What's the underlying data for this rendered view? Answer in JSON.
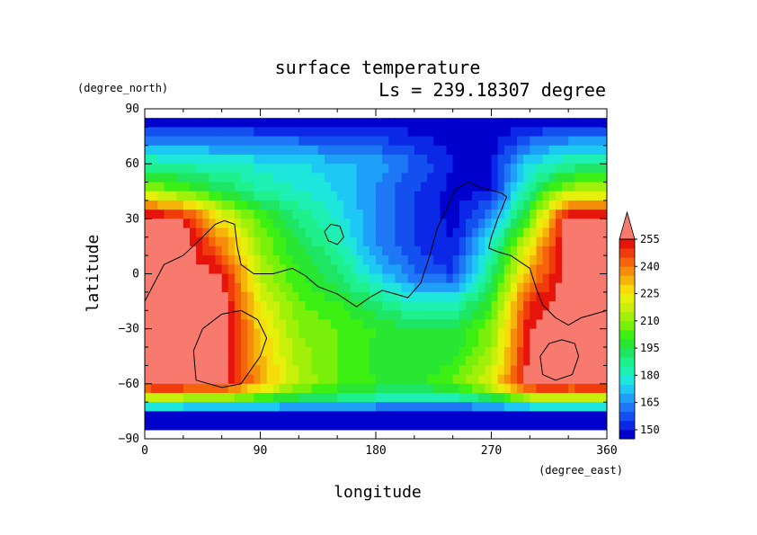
{
  "chart_data": {
    "type": "heatmap",
    "title": "surface temperature",
    "subtitle": "Ls = 239.18307 degree",
    "xlabel": "longitude",
    "ylabel": "latitude",
    "x_units": "(degree_east)",
    "y_units": "(degree_north)",
    "xlim": [
      0,
      360
    ],
    "ylim": [
      -90,
      90
    ],
    "x_ticks": [
      "0",
      "90",
      "180",
      "270",
      "360"
    ],
    "x_tick_values": [
      0,
      90,
      180,
      270,
      360
    ],
    "y_ticks": [
      "90",
      "60",
      "30",
      "0",
      "−30",
      "−60",
      "−90"
    ],
    "y_tick_values": [
      90,
      60,
      30,
      0,
      -30,
      -60,
      -90
    ],
    "colorbar": {
      "levels": [
        145,
        150,
        155,
        160,
        165,
        170,
        175,
        180,
        185,
        190,
        195,
        200,
        205,
        210,
        215,
        220,
        225,
        230,
        235,
        240,
        245,
        250,
        255,
        260
      ],
      "tick_labels": [
        "150",
        "165",
        "180",
        "195",
        "210",
        "225",
        "240",
        "255"
      ],
      "tick_values": [
        150,
        165,
        180,
        195,
        210,
        225,
        240,
        255
      ],
      "colors": [
        "#0000cd",
        "#0a28e6",
        "#1450f0",
        "#1e78f5",
        "#1ea0f8",
        "#1ec8f5",
        "#1ee6dc",
        "#1ef0b4",
        "#1ef08c",
        "#1ee664",
        "#28e632",
        "#3cf014",
        "#78f00a",
        "#a0f00a",
        "#c8f00a",
        "#e6f00a",
        "#f5dc0a",
        "#f5b40a",
        "#f58c0a",
        "#f5640a",
        "#f03c0a",
        "#e6140a",
        "#f87a6e"
      ],
      "extend": "max"
    },
    "surface_temperature_K": {
      "lon_deg": [
        0,
        30,
        60,
        90,
        120,
        150,
        180,
        210,
        240,
        270,
        300,
        330,
        360
      ],
      "lat_deg": [
        85,
        60,
        45,
        30,
        15,
        0,
        -15,
        -30,
        -45,
        -60,
        -70,
        -75,
        -85
      ],
      "values": [
        [
          145,
          145,
          145,
          145,
          145,
          145,
          145,
          145,
          145,
          145,
          145,
          145,
          145
        ],
        [
          185,
          182,
          180,
          178,
          175,
          172,
          168,
          160,
          150,
          150,
          175,
          185,
          185
        ],
        [
          215,
          205,
          195,
          185,
          180,
          175,
          165,
          155,
          148,
          150,
          190,
          215,
          215
        ],
        [
          260,
          255,
          225,
          205,
          190,
          178,
          165,
          155,
          148,
          165,
          205,
          260,
          260
        ],
        [
          260,
          260,
          240,
          210,
          195,
          185,
          165,
          155,
          150,
          180,
          225,
          260,
          260
        ],
        [
          260,
          260,
          255,
          215,
          200,
          190,
          175,
          160,
          155,
          190,
          235,
          260,
          260
        ],
        [
          260,
          260,
          260,
          222,
          205,
          200,
          190,
          180,
          180,
          200,
          250,
          260,
          260
        ],
        [
          260,
          260,
          260,
          228,
          210,
          205,
          200,
          195,
          195,
          208,
          255,
          260,
          260
        ],
        [
          260,
          260,
          260,
          232,
          212,
          205,
          198,
          195,
          198,
          212,
          258,
          260,
          260
        ],
        [
          260,
          260,
          258,
          235,
          215,
          205,
          200,
          198,
          205,
          222,
          260,
          260,
          260
        ],
        [
          200,
          200,
          198,
          192,
          188,
          185,
          180,
          175,
          175,
          185,
          200,
          200,
          200
        ],
        [
          150,
          150,
          150,
          150,
          150,
          150,
          150,
          150,
          150,
          150,
          150,
          150,
          150
        ],
        [
          145,
          145,
          145,
          145,
          145,
          145,
          145,
          145,
          145,
          145,
          145,
          145,
          145
        ]
      ]
    },
    "contours": [
      {
        "name": "coastline-main",
        "points": [
          [
            0,
            -15
          ],
          [
            15,
            5
          ],
          [
            30,
            10
          ],
          [
            45,
            20
          ],
          [
            55,
            27
          ],
          [
            62,
            29
          ],
          [
            70,
            27
          ],
          [
            72,
            15
          ],
          [
            75,
            5
          ],
          [
            85,
            0
          ],
          [
            100,
            0
          ],
          [
            110,
            2
          ],
          [
            115,
            3
          ],
          [
            125,
            -1
          ],
          [
            135,
            -7
          ],
          [
            150,
            -11
          ],
          [
            165,
            -18
          ],
          [
            175,
            -13
          ],
          [
            185,
            -9
          ],
          [
            195,
            -11
          ],
          [
            205,
            -13
          ],
          [
            215,
            -5
          ],
          [
            222,
            10
          ],
          [
            228,
            25
          ],
          [
            235,
            35
          ],
          [
            242,
            46
          ],
          [
            252,
            50
          ],
          [
            262,
            47
          ],
          [
            278,
            44
          ],
          [
            282,
            42
          ],
          [
            275,
            30
          ],
          [
            270,
            20
          ],
          [
            268,
            14
          ],
          [
            275,
            12
          ],
          [
            285,
            10
          ],
          [
            300,
            3
          ],
          [
            305,
            -8
          ],
          [
            310,
            -17
          ],
          [
            320,
            -24
          ],
          [
            330,
            -28
          ],
          [
            340,
            -24
          ],
          [
            350,
            -22
          ],
          [
            360,
            -20
          ]
        ]
      },
      {
        "name": "contour-loop-west",
        "points": [
          [
            40,
            -58
          ],
          [
            60,
            -62
          ],
          [
            75,
            -60
          ],
          [
            90,
            -45
          ],
          [
            95,
            -35
          ],
          [
            88,
            -25
          ],
          [
            75,
            -20
          ],
          [
            60,
            -22
          ],
          [
            45,
            -30
          ],
          [
            38,
            -42
          ],
          [
            40,
            -58
          ]
        ]
      },
      {
        "name": "contour-loop-east",
        "points": [
          [
            310,
            -55
          ],
          [
            320,
            -58
          ],
          [
            333,
            -55
          ],
          [
            338,
            -45
          ],
          [
            335,
            -38
          ],
          [
            325,
            -36
          ],
          [
            315,
            -38
          ],
          [
            308,
            -45
          ],
          [
            310,
            -55
          ]
        ]
      },
      {
        "name": "contour-loop-island",
        "points": [
          [
            140,
            23
          ],
          [
            145,
            27
          ],
          [
            152,
            26
          ],
          [
            155,
            20
          ],
          [
            150,
            16
          ],
          [
            143,
            18
          ],
          [
            140,
            23
          ]
        ]
      }
    ]
  }
}
